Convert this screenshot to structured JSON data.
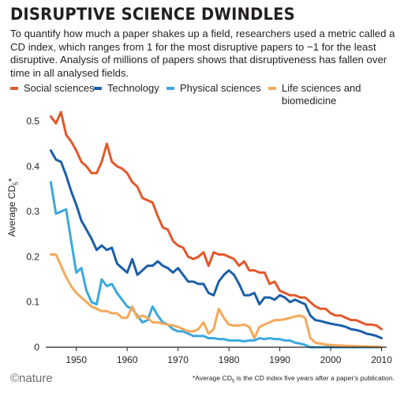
{
  "header": {
    "title": "DISRUPTIVE SCIENCE DWINDLES",
    "description": "To quantify how much a paper shakes up a field, researchers used a metric called a CD index, which ranges from 1 for the most disruptive papers to −1 for the least disruptive. Analysis of millions of papers shows that disruptiveness has fallen over time in all analysed fields."
  },
  "footer": {
    "logo_text": "©nature",
    "footnote_prefix": "*Average CD",
    "footnote_sub": "5",
    "footnote_suffix": " is the CD index five years after a paper's publication."
  },
  "chart_data": {
    "type": "line",
    "ylabel_main": "Average CD",
    "ylabel_sub": "5",
    "ylabel_suffix": "*",
    "xlim": [
      1944,
      2011
    ],
    "ylim": [
      0,
      0.52
    ],
    "xticks": [
      1950,
      1960,
      1970,
      1980,
      1990,
      2000,
      2010
    ],
    "yticks": [
      0,
      0.1,
      0.2,
      0.3,
      0.4,
      0.5
    ],
    "ytick_labels": [
      "0",
      "0.1",
      "0.2",
      "0.3",
      "0.4",
      "0.5"
    ],
    "grid": false,
    "legend_position": "top",
    "series": [
      {
        "name": "Social sciences",
        "color": "#e3572b",
        "x": [
          1945,
          1946,
          1947,
          1948,
          1949,
          1950,
          1951,
          1952,
          1953,
          1954,
          1955,
          1956,
          1957,
          1958,
          1959,
          1960,
          1961,
          1962,
          1963,
          1964,
          1965,
          1966,
          1967,
          1968,
          1969,
          1970,
          1971,
          1972,
          1973,
          1974,
          1975,
          1976,
          1977,
          1978,
          1979,
          1980,
          1981,
          1982,
          1983,
          1984,
          1985,
          1986,
          1987,
          1988,
          1989,
          1990,
          1991,
          1992,
          1993,
          1994,
          1995,
          1996,
          1997,
          1998,
          1999,
          2000,
          2001,
          2002,
          2003,
          2004,
          2005,
          2006,
          2007,
          2008,
          2009,
          2010
        ],
        "y": [
          0.51,
          0.495,
          0.52,
          0.47,
          0.455,
          0.435,
          0.41,
          0.4,
          0.385,
          0.385,
          0.41,
          0.45,
          0.41,
          0.4,
          0.395,
          0.385,
          0.365,
          0.355,
          0.33,
          0.325,
          0.32,
          0.29,
          0.265,
          0.26,
          0.235,
          0.225,
          0.22,
          0.2,
          0.195,
          0.2,
          0.21,
          0.18,
          0.21,
          0.205,
          0.205,
          0.2,
          0.195,
          0.18,
          0.19,
          0.17,
          0.17,
          0.165,
          0.165,
          0.14,
          0.145,
          0.125,
          0.12,
          0.115,
          0.115,
          0.11,
          0.11,
          0.1,
          0.09,
          0.085,
          0.085,
          0.075,
          0.07,
          0.07,
          0.065,
          0.06,
          0.06,
          0.055,
          0.05,
          0.05,
          0.048,
          0.04
        ]
      },
      {
        "name": "Technology",
        "color": "#1a5fa8",
        "x": [
          1945,
          1946,
          1947,
          1948,
          1949,
          1950,
          1951,
          1952,
          1953,
          1954,
          1955,
          1956,
          1957,
          1958,
          1959,
          1960,
          1961,
          1962,
          1963,
          1964,
          1965,
          1966,
          1967,
          1968,
          1969,
          1970,
          1971,
          1972,
          1973,
          1974,
          1975,
          1976,
          1977,
          1978,
          1979,
          1980,
          1981,
          1982,
          1983,
          1984,
          1985,
          1986,
          1987,
          1988,
          1989,
          1990,
          1991,
          1992,
          1993,
          1994,
          1995,
          1996,
          1997,
          1998,
          1999,
          2000,
          2001,
          2002,
          2003,
          2004,
          2005,
          2006,
          2007,
          2008,
          2009,
          2010
        ],
        "y": [
          0.435,
          0.415,
          0.41,
          0.38,
          0.345,
          0.315,
          0.28,
          0.26,
          0.24,
          0.215,
          0.225,
          0.215,
          0.22,
          0.185,
          0.175,
          0.165,
          0.195,
          0.16,
          0.17,
          0.18,
          0.18,
          0.19,
          0.18,
          0.175,
          0.165,
          0.175,
          0.16,
          0.145,
          0.145,
          0.14,
          0.14,
          0.12,
          0.115,
          0.145,
          0.16,
          0.17,
          0.16,
          0.14,
          0.115,
          0.115,
          0.12,
          0.095,
          0.11,
          0.11,
          0.105,
          0.115,
          0.11,
          0.1,
          0.105,
          0.1,
          0.095,
          0.07,
          0.06,
          0.058,
          0.055,
          0.052,
          0.05,
          0.048,
          0.045,
          0.04,
          0.038,
          0.035,
          0.03,
          0.028,
          0.025,
          0.02
        ]
      },
      {
        "name": "Physical sciences",
        "color": "#3aa8e0",
        "x": [
          1945,
          1946,
          1947,
          1948,
          1949,
          1950,
          1951,
          1952,
          1953,
          1954,
          1955,
          1956,
          1957,
          1958,
          1959,
          1960,
          1961,
          1962,
          1963,
          1964,
          1965,
          1966,
          1967,
          1968,
          1969,
          1970,
          1971,
          1972,
          1973,
          1974,
          1975,
          1976,
          1977,
          1978,
          1979,
          1980,
          1981,
          1982,
          1983,
          1984,
          1985,
          1986,
          1987,
          1988,
          1989,
          1990,
          1991,
          1992,
          1993,
          1994,
          1995,
          1996,
          1997,
          1998,
          1999,
          2000,
          2001,
          2002,
          2003,
          2004,
          2005,
          2006,
          2007,
          2008,
          2009,
          2010
        ],
        "y": [
          0.365,
          0.295,
          0.3,
          0.305,
          0.235,
          0.165,
          0.175,
          0.125,
          0.1,
          0.095,
          0.15,
          0.135,
          0.14,
          0.12,
          0.105,
          0.09,
          0.085,
          0.07,
          0.055,
          0.06,
          0.09,
          0.07,
          0.055,
          0.05,
          0.04,
          0.035,
          0.035,
          0.03,
          0.025,
          0.025,
          0.025,
          0.02,
          0.02,
          0.018,
          0.018,
          0.015,
          0.015,
          0.015,
          0.013,
          0.015,
          0.015,
          0.02,
          0.018,
          0.02,
          0.018,
          0.018,
          0.015,
          0.015,
          0.01,
          0.008,
          0.005,
          0.0,
          0.0,
          0.0,
          0.0,
          0.0,
          0.0,
          0.0,
          0.0,
          0.0,
          0.0,
          0.0,
          0.0,
          0.0,
          0.0,
          0.0
        ]
      },
      {
        "name": "Life sciences and biomedicine",
        "color": "#f5a85a",
        "x": [
          1945,
          1946,
          1947,
          1948,
          1949,
          1950,
          1951,
          1952,
          1953,
          1954,
          1955,
          1956,
          1957,
          1958,
          1959,
          1960,
          1961,
          1962,
          1963,
          1964,
          1965,
          1966,
          1967,
          1968,
          1969,
          1970,
          1971,
          1972,
          1973,
          1974,
          1975,
          1976,
          1977,
          1978,
          1979,
          1980,
          1981,
          1982,
          1983,
          1984,
          1985,
          1986,
          1987,
          1988,
          1989,
          1990,
          1991,
          1992,
          1993,
          1994,
          1995,
          1996,
          1997,
          1998,
          1999,
          2000,
          2001,
          2002,
          2003,
          2004,
          2005,
          2006,
          2007,
          2008,
          2009,
          2010
        ],
        "y": [
          0.205,
          0.205,
          0.18,
          0.155,
          0.135,
          0.12,
          0.11,
          0.1,
          0.09,
          0.085,
          0.08,
          0.08,
          0.075,
          0.075,
          0.065,
          0.065,
          0.09,
          0.065,
          0.07,
          0.065,
          0.055,
          0.055,
          0.052,
          0.05,
          0.048,
          0.045,
          0.04,
          0.035,
          0.035,
          0.04,
          0.055,
          0.03,
          0.04,
          0.085,
          0.065,
          0.05,
          0.048,
          0.048,
          0.05,
          0.045,
          0.02,
          0.045,
          0.05,
          0.055,
          0.06,
          0.06,
          0.062,
          0.065,
          0.068,
          0.07,
          0.065,
          0.02,
          0.01,
          0.008,
          0.006,
          0.005,
          0.004,
          0.004,
          0.003,
          0.003,
          0.002,
          0.002,
          0.002,
          0.001,
          0.001,
          0.0
        ]
      }
    ]
  }
}
